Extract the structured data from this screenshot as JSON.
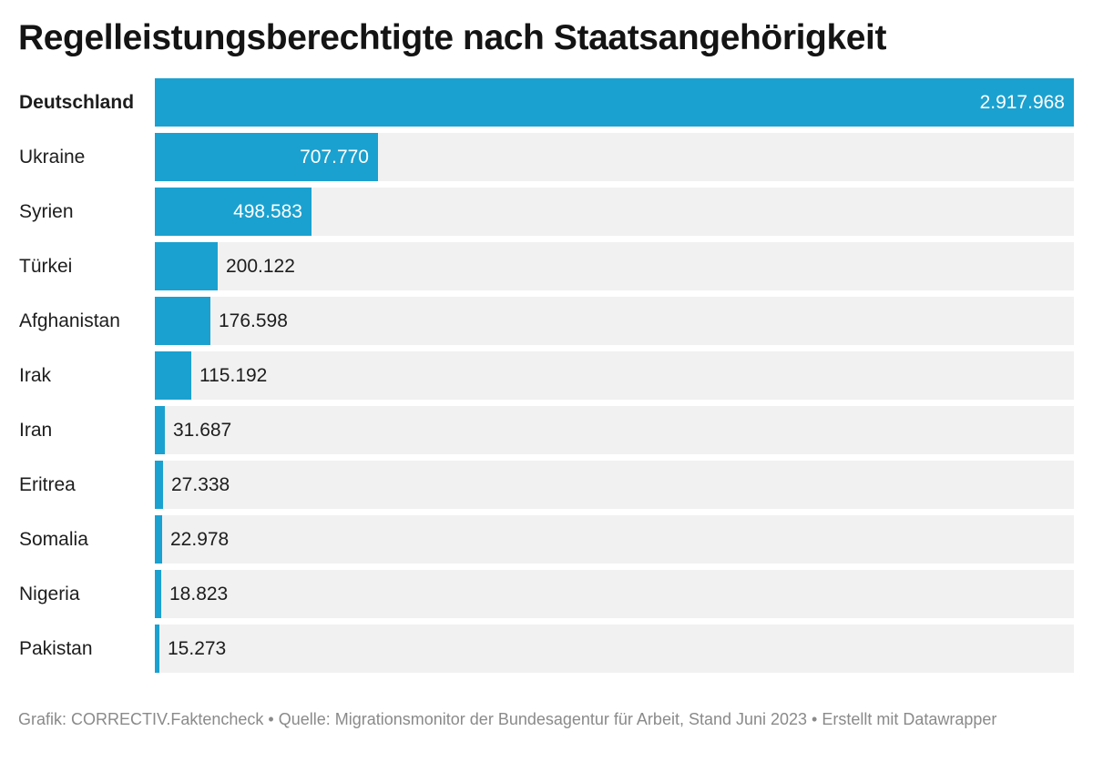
{
  "title": "Regelleistungsberechtigte nach Staatsangehörigkeit",
  "footer": "Grafik: CORRECTIV.Faktencheck • Quelle: Migrationsmonitor der Bundesagentur für Arbeit, Stand Juni 2023 • Erstellt mit Datawrapper",
  "colors": {
    "bar": "#1aa1d0",
    "track": "#f1f1f1",
    "text": "#1d1d1d",
    "footer": "#8a8a8a"
  },
  "chart_data": {
    "type": "bar",
    "orientation": "horizontal",
    "title": "Regelleistungsberechtigte nach Staatsangehörigkeit",
    "categories": [
      "Deutschland",
      "Ukraine",
      "Syrien",
      "Türkei",
      "Afghanistan",
      "Irak",
      "Iran",
      "Eritrea",
      "Somalia",
      "Nigeria",
      "Pakistan"
    ],
    "values": [
      2917968,
      707770,
      498583,
      200122,
      176598,
      115192,
      31687,
      27338,
      22978,
      18823,
      15273
    ],
    "value_labels": [
      "2.917.968",
      "707.770",
      "498.583",
      "200.122",
      "176.598",
      "115.192",
      "31.687",
      "27.338",
      "22.978",
      "18.823",
      "15.273"
    ],
    "highlighted_category": "Deutschland",
    "xlim": [
      0,
      2917968
    ],
    "grid": false,
    "legend": "none"
  }
}
